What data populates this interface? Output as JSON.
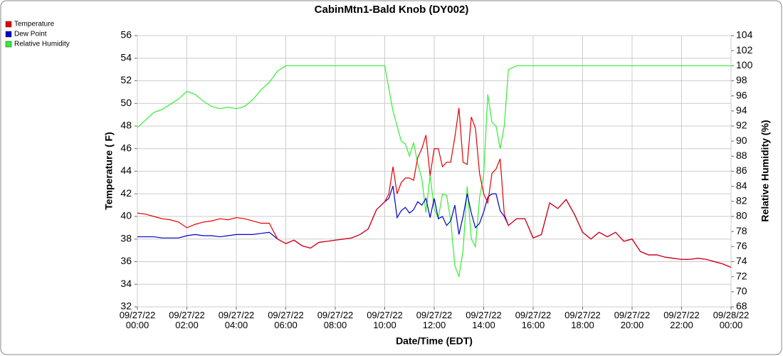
{
  "chart_data": {
    "type": "line",
    "title": "CabinMtn1-Bald Knob (DY002)",
    "xlabel": "Date/Time (EDT)",
    "ylabel": "Temperature ( F)",
    "y2label": "Relative Humidity (%)",
    "x": [
      0,
      20,
      40,
      60,
      80,
      100,
      120,
      140,
      160,
      180,
      200,
      220,
      240,
      260,
      280,
      300,
      320,
      340,
      360,
      380,
      400,
      420,
      440,
      460,
      480,
      500,
      520,
      540,
      560,
      580,
      600,
      610,
      620,
      630,
      640,
      650,
      660,
      670,
      680,
      690,
      700,
      710,
      720,
      730,
      740,
      750,
      760,
      770,
      780,
      790,
      800,
      810,
      820,
      830,
      840,
      850,
      860,
      870,
      880,
      890,
      900,
      920,
      940,
      960,
      980,
      1000,
      1020,
      1040,
      1060,
      1080,
      1100,
      1120,
      1140,
      1160,
      1180,
      1200,
      1220,
      1240,
      1260,
      1280,
      1300,
      1320,
      1340,
      1360,
      1380,
      1400,
      1420,
      1440
    ],
    "xlim": [
      0,
      1440
    ],
    "xticks": [
      {
        "value": 0,
        "label": "09/27/22\n00:00"
      },
      {
        "value": 120,
        "label": "09/27/22\n02:00"
      },
      {
        "value": 240,
        "label": "09/27/22\n04:00"
      },
      {
        "value": 360,
        "label": "09/27/22\n06:00"
      },
      {
        "value": 480,
        "label": "09/27/22\n08:00"
      },
      {
        "value": 600,
        "label": "09/27/22\n10:00"
      },
      {
        "value": 720,
        "label": "09/27/22\n12:00"
      },
      {
        "value": 840,
        "label": "09/27/22\n14:00"
      },
      {
        "value": 960,
        "label": "09/27/22\n16:00"
      },
      {
        "value": 1080,
        "label": "09/27/22\n18:00"
      },
      {
        "value": 1200,
        "label": "09/27/22\n20:00"
      },
      {
        "value": 1320,
        "label": "09/27/22\n22:00"
      },
      {
        "value": 1440,
        "label": "09/28/22\n00:00"
      }
    ],
    "ylim": [
      32,
      56
    ],
    "yticks": [
      32,
      34,
      36,
      38,
      40,
      42,
      44,
      46,
      48,
      50,
      52,
      54,
      56
    ],
    "y2lim": [
      68,
      104
    ],
    "y2ticks": [
      68,
      70,
      72,
      74,
      76,
      78,
      80,
      82,
      84,
      86,
      88,
      90,
      92,
      94,
      96,
      98,
      100,
      102,
      104
    ],
    "grid": true,
    "legend": "top-left",
    "series": [
      {
        "name": "Temperature",
        "color": "#e60000",
        "values": [
          40.3,
          40.2,
          40.0,
          39.8,
          39.7,
          39.5,
          39.0,
          39.3,
          39.5,
          39.6,
          39.8,
          39.7,
          39.9,
          39.8,
          39.6,
          39.4,
          39.4,
          38.0,
          37.6,
          37.9,
          37.4,
          37.2,
          37.7,
          37.8,
          37.9,
          38.0,
          38.1,
          38.4,
          38.9,
          40.6,
          41.3,
          42.0,
          44.4,
          42.0,
          43.0,
          43.4,
          43.4,
          43.2,
          45.2,
          46.0,
          47.2,
          43.6,
          46.0,
          46.0,
          44.4,
          44.8,
          44.8,
          47.0,
          49.6,
          44.8,
          44.6,
          48.8,
          47.8,
          43.8,
          42.0,
          41.2,
          43.8,
          44.2,
          45.1,
          40.2,
          39.2,
          39.8,
          39.8,
          38.1,
          38.4,
          41.2,
          40.7,
          41.5,
          40.2,
          38.6,
          38.0,
          38.6,
          38.2,
          38.6,
          37.8,
          38.0,
          36.9,
          36.6,
          36.6,
          36.4,
          36.3,
          36.2,
          36.2,
          36.3,
          36.2,
          36.0,
          35.8,
          35.5
        ]
      },
      {
        "name": "Dew Point",
        "color": "#0000cc",
        "values": [
          38.2,
          38.2,
          38.2,
          38.1,
          38.1,
          38.1,
          38.3,
          38.4,
          38.3,
          38.3,
          38.2,
          38.3,
          38.4,
          38.4,
          38.4,
          38.5,
          38.6,
          38.0,
          37.6,
          37.9,
          37.4,
          37.2,
          37.7,
          37.8,
          37.9,
          38.0,
          38.1,
          38.4,
          38.9,
          40.6,
          41.3,
          41.6,
          42.7,
          39.9,
          40.5,
          40.8,
          40.3,
          40.6,
          41.3,
          41.0,
          41.6,
          39.9,
          41.6,
          39.8,
          40.0,
          39.2,
          39.6,
          41.0,
          38.4,
          40.0,
          42.0,
          40.3,
          39.0,
          39.4,
          40.4,
          41.7,
          42.0,
          42.0,
          40.5,
          40.0,
          39.2,
          39.8,
          39.8,
          38.1,
          38.4,
          41.2,
          40.7,
          41.5,
          40.2,
          38.6,
          38.0,
          38.6,
          38.2,
          38.6,
          37.8,
          38.0,
          36.9,
          36.6,
          36.6,
          36.4,
          36.3,
          36.2,
          36.2,
          36.3,
          36.2,
          36.0,
          35.8,
          35.5
        ]
      },
      {
        "name": "Relative Humidity",
        "color": "#33ee33",
        "axis": "y2",
        "values": [
          91.8,
          92.8,
          93.8,
          94.2,
          94.9,
          95.6,
          96.6,
          96.2,
          95.3,
          94.6,
          94.3,
          94.5,
          94.3,
          94.6,
          95.5,
          96.8,
          97.8,
          99.3,
          100,
          100,
          100,
          100,
          100,
          100,
          100,
          100,
          100,
          100,
          100,
          100,
          100,
          97,
          94,
          92,
          90,
          89.6,
          88,
          89.8,
          87,
          85,
          80.5,
          85.5,
          81,
          79.8,
          83,
          82.8,
          79.5,
          73.5,
          72,
          75.5,
          84,
          77,
          76,
          82.5,
          85.5,
          96.2,
          92.5,
          92,
          89,
          92,
          99.5,
          100,
          100,
          100,
          100,
          100,
          100,
          100,
          100,
          100,
          100,
          100,
          100,
          100,
          100,
          100,
          100,
          100,
          100,
          100,
          100,
          100,
          100,
          100,
          100,
          100,
          100,
          100
        ]
      }
    ]
  }
}
